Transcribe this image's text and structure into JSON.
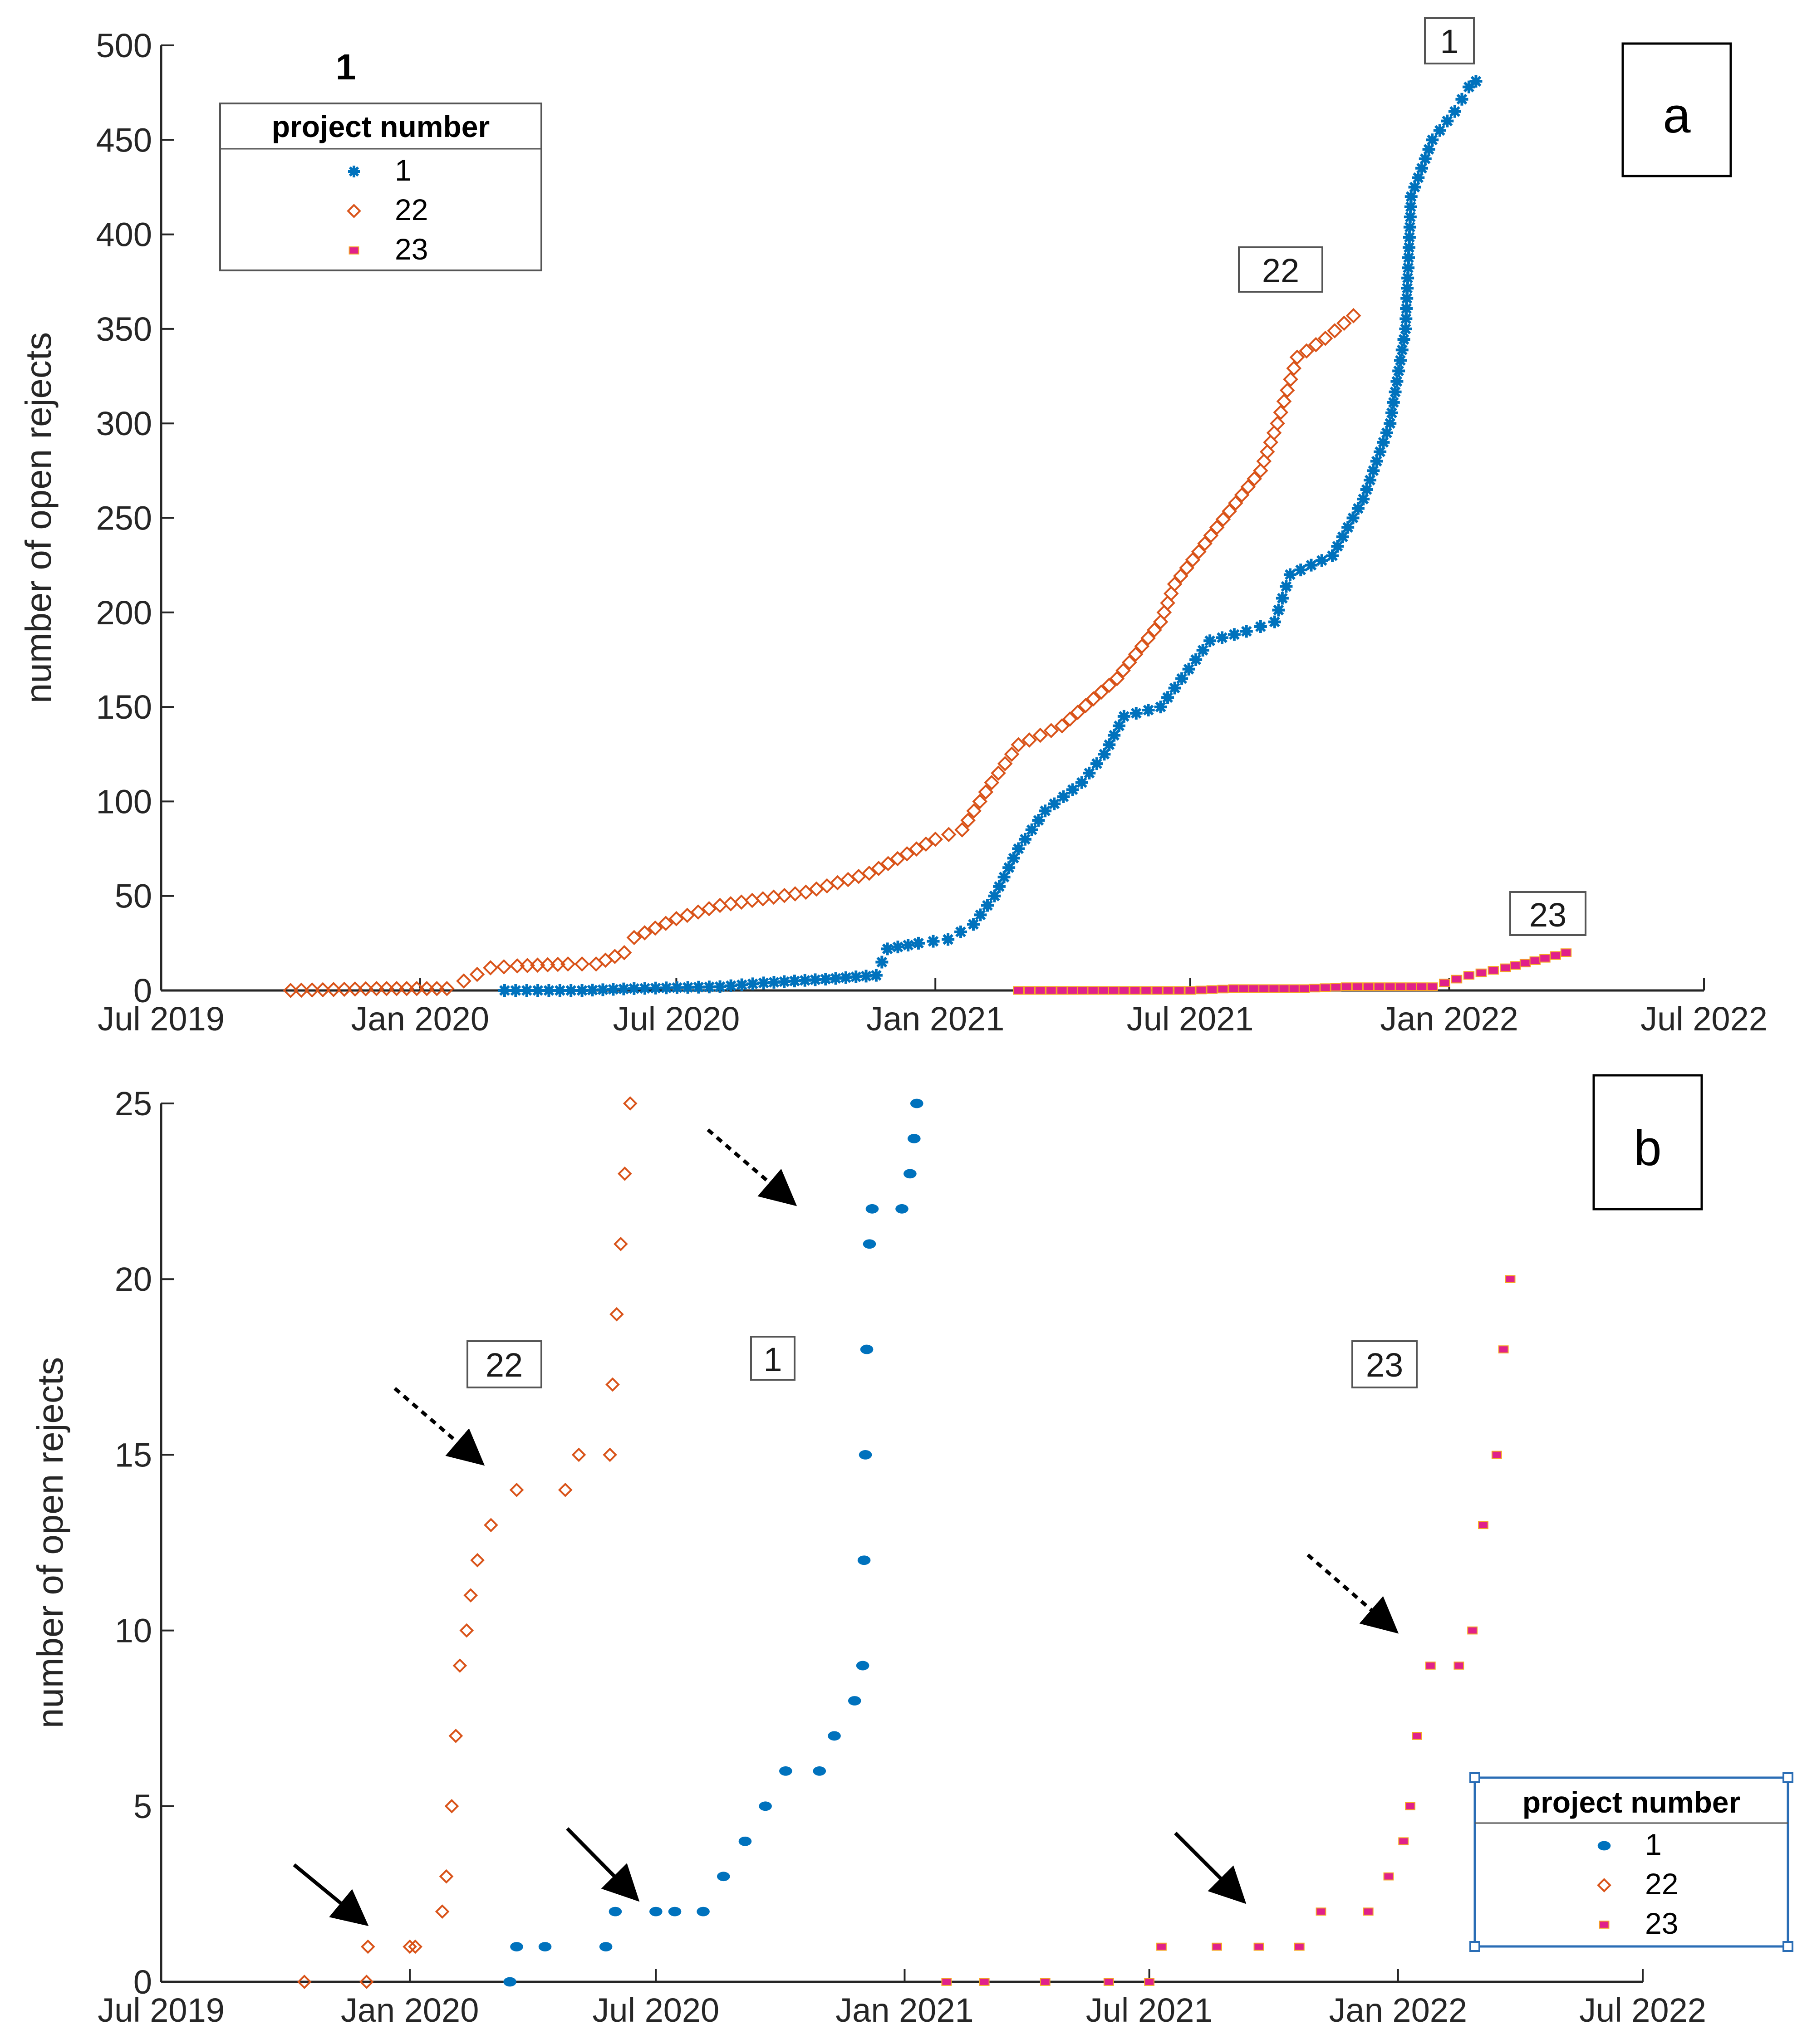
{
  "figure": {
    "top_left_label": "1"
  },
  "chart_data": [
    {
      "panel": "a",
      "type": "scatter",
      "ylabel": "number of open rejects",
      "xlabel": "",
      "ylim": [
        0,
        500
      ],
      "yticks": [
        "0",
        "50",
        "100",
        "150",
        "200",
        "250",
        "300",
        "350",
        "400",
        "450",
        "500"
      ],
      "xlim": [
        "2019-07-01",
        "2022-07-01"
      ],
      "xticks": [
        "Jul 2019",
        "Jan 2020",
        "Jul 2020",
        "Jan 2021",
        "Jul 2021",
        "Jan 2022",
        "Jul 2022"
      ],
      "grid": false,
      "legend": {
        "title": "project number",
        "placement": "top-left",
        "entries": [
          "1",
          "22",
          "23"
        ]
      },
      "annotations": [
        "1",
        "22",
        "23"
      ],
      "series": [
        {
          "name": "1",
          "color": "#0072BD",
          "marker": "star",
          "points": [
            [
              "2020-03-01",
              0
            ],
            [
              "2020-04-25",
              0
            ],
            [
              "2020-06-01",
              1
            ],
            [
              "2020-08-01",
              2
            ],
            [
              "2020-09-01",
              4
            ],
            [
              "2020-10-15",
              6
            ],
            [
              "2020-11-20",
              8
            ],
            [
              "2020-11-28",
              22
            ],
            [
              "2020-12-20",
              25
            ],
            [
              "2021-01-10",
              27
            ],
            [
              "2021-01-28",
              35
            ],
            [
              "2021-02-12",
              50
            ],
            [
              "2021-03-01",
              75
            ],
            [
              "2021-03-20",
              95
            ],
            [
              "2021-04-15",
              110
            ],
            [
              "2021-05-01",
              125
            ],
            [
              "2021-05-15",
              145
            ],
            [
              "2021-06-10",
              150
            ],
            [
              "2021-06-25",
              165
            ],
            [
              "2021-07-15",
              185
            ],
            [
              "2021-08-10",
              190
            ],
            [
              "2021-08-30",
              195
            ],
            [
              "2021-09-10",
              220
            ],
            [
              "2021-10-10",
              230
            ],
            [
              "2021-11-01",
              260
            ],
            [
              "2021-11-20",
              300
            ],
            [
              "2021-12-01",
              350
            ],
            [
              "2021-12-05",
              420
            ],
            [
              "2021-12-20",
              450
            ],
            [
              "2022-01-05",
              465
            ],
            [
              "2022-01-15",
              478
            ],
            [
              "2022-01-20",
              481
            ]
          ]
        },
        {
          "name": "22",
          "color": "#D95319",
          "marker": "diamond",
          "points": [
            [
              "2019-10-01",
              0
            ],
            [
              "2019-12-01",
              1
            ],
            [
              "2020-01-20",
              1
            ],
            [
              "2020-02-01",
              5
            ],
            [
              "2020-02-20",
              12
            ],
            [
              "2020-03-10",
              13
            ],
            [
              "2020-04-15",
              14
            ],
            [
              "2020-05-05",
              14
            ],
            [
              "2020-05-25",
              20
            ],
            [
              "2020-06-01",
              28
            ],
            [
              "2020-07-01",
              38
            ],
            [
              "2020-08-01",
              45
            ],
            [
              "2020-10-01",
              52
            ],
            [
              "2020-11-15",
              62
            ],
            [
              "2021-01-01",
              80
            ],
            [
              "2021-01-20",
              85
            ],
            [
              "2021-02-10",
              110
            ],
            [
              "2021-03-01",
              130
            ],
            [
              "2021-04-01",
              140
            ],
            [
              "2021-05-10",
              165
            ],
            [
              "2021-06-10",
              195
            ],
            [
              "2021-06-20",
              215
            ],
            [
              "2021-07-20",
              245
            ],
            [
              "2021-08-20",
              275
            ],
            [
              "2021-09-01",
              300
            ],
            [
              "2021-09-15",
              335
            ],
            [
              "2021-10-05",
              345
            ],
            [
              "2021-10-25",
              357
            ]
          ]
        },
        {
          "name": "23",
          "color": "#E0218A",
          "marker": "square",
          "points": [
            [
              "2021-03-01",
              0
            ],
            [
              "2021-04-01",
              0
            ],
            [
              "2021-05-15",
              0
            ],
            [
              "2021-07-01",
              0
            ],
            [
              "2021-08-01",
              1
            ],
            [
              "2021-09-20",
              1
            ],
            [
              "2021-10-20",
              2
            ],
            [
              "2021-11-20",
              2
            ],
            [
              "2021-12-20",
              2
            ],
            [
              "2022-01-15",
              8
            ],
            [
              "2022-02-10",
              12
            ],
            [
              "2022-03-10",
              17
            ],
            [
              "2022-03-25",
              20
            ]
          ]
        }
      ]
    },
    {
      "panel": "b",
      "type": "scatter",
      "ylabel": "number of open rejects",
      "xlabel": "",
      "ylim": [
        0,
        25
      ],
      "yticks": [
        "0",
        "5",
        "10",
        "15",
        "20",
        "25"
      ],
      "xlim": [
        "2019-07-01",
        "2022-07-01"
      ],
      "xticks": [
        "Jul 2019",
        "Jan 2020",
        "Jul 2020",
        "Jan 2021",
        "Jul 2021",
        "Jan 2022",
        "Jul 2022"
      ],
      "grid": false,
      "legend": {
        "title": "project number",
        "placement": "bottom-right",
        "entries": [
          "1",
          "22",
          "23"
        ]
      },
      "annotations": [
        "22",
        "1",
        "23"
      ],
      "series": [
        {
          "name": "1",
          "color": "#0072BD",
          "marker": "dot",
          "points": [
            [
              "2020-03-15",
              0
            ],
            [
              "2020-03-20",
              1
            ],
            [
              "2020-04-10",
              1
            ],
            [
              "2020-05-25",
              1
            ],
            [
              "2020-06-01",
              2
            ],
            [
              "2020-07-01",
              2
            ],
            [
              "2020-07-15",
              2
            ],
            [
              "2020-08-05",
              2
            ],
            [
              "2020-08-20",
              3
            ],
            [
              "2020-09-05",
              4
            ],
            [
              "2020-09-20",
              5
            ],
            [
              "2020-10-05",
              6
            ],
            [
              "2020-10-30",
              6
            ],
            [
              "2020-11-10",
              7
            ],
            [
              "2020-11-25",
              8
            ],
            [
              "2020-12-01",
              9
            ],
            [
              "2020-12-02",
              12
            ],
            [
              "2020-12-03",
              15
            ],
            [
              "2020-12-04",
              18
            ],
            [
              "2020-12-06",
              21
            ],
            [
              "2020-12-08",
              22
            ],
            [
              "2020-12-30",
              22
            ],
            [
              "2021-01-05",
              23
            ],
            [
              "2021-01-08",
              24
            ],
            [
              "2021-01-10",
              25
            ]
          ]
        },
        {
          "name": "22",
          "color": "#D95319",
          "marker": "diamond",
          "points": [
            [
              "2019-10-15",
              0
            ],
            [
              "2019-11-30",
              0
            ],
            [
              "2019-12-01",
              1
            ],
            [
              "2020-01-01",
              1
            ],
            [
              "2020-01-05",
              1
            ],
            [
              "2020-01-25",
              2
            ],
            [
              "2020-01-28",
              3
            ],
            [
              "2020-02-01",
              5
            ],
            [
              "2020-02-04",
              7
            ],
            [
              "2020-02-07",
              9
            ],
            [
              "2020-02-12",
              10
            ],
            [
              "2020-02-15",
              11
            ],
            [
              "2020-02-20",
              12
            ],
            [
              "2020-03-01",
              13
            ],
            [
              "2020-03-20",
              14
            ],
            [
              "2020-04-25",
              14
            ],
            [
              "2020-05-05",
              15
            ],
            [
              "2020-05-28",
              15
            ],
            [
              "2020-05-30",
              17
            ],
            [
              "2020-06-02",
              19
            ],
            [
              "2020-06-05",
              21
            ],
            [
              "2020-06-08",
              23
            ],
            [
              "2020-06-12",
              25
            ]
          ]
        },
        {
          "name": "23",
          "color": "#E0218A",
          "marker": "square",
          "points": [
            [
              "2021-02-01",
              0
            ],
            [
              "2021-03-01",
              0
            ],
            [
              "2021-04-15",
              0
            ],
            [
              "2021-06-01",
              0
            ],
            [
              "2021-07-01",
              0
            ],
            [
              "2021-07-10",
              1
            ],
            [
              "2021-08-20",
              1
            ],
            [
              "2021-09-20",
              1
            ],
            [
              "2021-10-20",
              1
            ],
            [
              "2021-11-05",
              2
            ],
            [
              "2021-12-10",
              2
            ],
            [
              "2021-12-25",
              3
            ],
            [
              "2022-01-05",
              4
            ],
            [
              "2022-01-10",
              5
            ],
            [
              "2022-01-15",
              7
            ],
            [
              "2022-01-25",
              9
            ],
            [
              "2022-02-15",
              9
            ],
            [
              "2022-02-25",
              10
            ],
            [
              "2022-03-05",
              13
            ],
            [
              "2022-03-15",
              15
            ],
            [
              "2022-03-20",
              18
            ],
            [
              "2022-03-25",
              20
            ]
          ]
        }
      ]
    }
  ]
}
